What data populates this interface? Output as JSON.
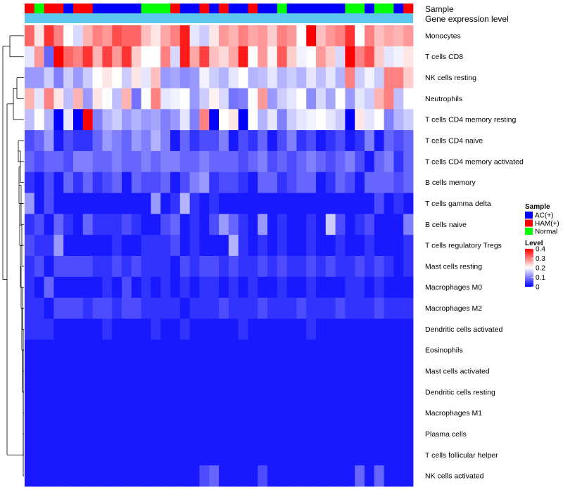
{
  "chart_data": {
    "type": "heatmap",
    "title": "",
    "annotation_tracks": [
      "Sample",
      "Gene expression level"
    ],
    "sample_groups": [
      "HAM(+)",
      "Normal",
      "HAM(+)",
      "HAM(+)",
      "AC(+)",
      "HAM(+)",
      "HAM(+)",
      "AC(+)",
      "AC(+)",
      "AC(+)",
      "AC(+)",
      "AC(+)",
      "Normal",
      "Normal",
      "Normal",
      "HAM(+)",
      "AC(+)",
      "AC(+)",
      "HAM(+)",
      "AC(+)",
      "HAM(+)",
      "AC(+)",
      "AC(+)",
      "HAM(+)",
      "AC(+)",
      "AC(+)",
      "Normal",
      "AC(+)",
      "AC(+)",
      "AC(+)",
      "AC(+)",
      "AC(+)",
      "AC(+)",
      "Normal",
      "Normal",
      "AC(+)",
      "Normal",
      "Normal",
      "AC(+)",
      "HAM(+)"
    ],
    "rows": [
      "Monocytes",
      "T cells CD8",
      "NK cells resting",
      "Neutrophils",
      "T cells CD4 memory resting",
      "T cells CD4 naive",
      "T cells CD4 memory activated",
      "B cells memory",
      "T cells gamma delta",
      "B cells naive",
      "T cells regulatory  Tregs",
      "Mast cells resting",
      "Macrophages M0",
      "Macrophages M2",
      "Dendritic cells activated",
      "Eosinophils",
      "Mast cells activated",
      "Dendritic cells resting",
      "Macrophages M1",
      "Plasma cells",
      "T cells follicular helper",
      "NK cells activated"
    ],
    "values": [
      [
        0.32,
        0.22,
        0.36,
        0.3,
        0.2,
        0.17,
        0.26,
        0.3,
        0.28,
        0.34,
        0.32,
        0.32,
        0.25,
        0.22,
        0.27,
        0.3,
        0.38,
        0.18,
        0.16,
        0.22,
        0.28,
        0.26,
        0.3,
        0.27,
        0.28,
        0.24,
        0.3,
        0.28,
        0.2,
        0.4,
        0.25,
        0.28,
        0.3,
        0.36,
        0.2,
        0.3,
        0.25,
        0.27,
        0.26,
        0.28
      ],
      [
        0.18,
        0.28,
        0.08,
        0.4,
        0.32,
        0.3,
        0.36,
        0.26,
        0.35,
        0.28,
        0.36,
        0.24,
        0.2,
        0.2,
        0.3,
        0.17,
        0.38,
        0.27,
        0.35,
        0.25,
        0.23,
        0.27,
        0.38,
        0.2,
        0.28,
        0.21,
        0.33,
        0.24,
        0.19,
        0.2,
        0.28,
        0.24,
        0.17,
        0.4,
        0.3,
        0.34,
        0.24,
        0.18,
        0.19,
        0.22
      ],
      [
        0.12,
        0.12,
        0.16,
        0.1,
        0.16,
        0.12,
        0.16,
        0.2,
        0.22,
        0.2,
        0.16,
        0.22,
        0.18,
        0.25,
        0.12,
        0.13,
        0.11,
        0.12,
        0.19,
        0.16,
        0.14,
        0.18,
        0.2,
        0.14,
        0.15,
        0.18,
        0.14,
        0.16,
        0.14,
        0.18,
        0.15,
        0.18,
        0.14,
        0.3,
        0.16,
        0.19,
        0.16,
        0.3,
        0.3,
        0.24
      ],
      [
        0.26,
        0.18,
        0.3,
        0.22,
        0.15,
        0.26,
        0.12,
        0.22,
        0.2,
        0.15,
        0.26,
        0.09,
        0.2,
        0.3,
        0.18,
        0.19,
        0.2,
        0.12,
        0.16,
        0.21,
        0.17,
        0.09,
        0.1,
        0.2,
        0.28,
        0.12,
        0.16,
        0.18,
        0.2,
        0.11,
        0.17,
        0.13,
        0.2,
        0.12,
        0.18,
        0.16,
        0.26,
        0.3,
        0.15,
        0.2
      ],
      [
        0.15,
        0.2,
        0.14,
        0.0,
        0.18,
        0.0,
        0.4,
        0.1,
        0.14,
        0.16,
        0.12,
        0.14,
        0.12,
        0.13,
        0.1,
        0.12,
        0.18,
        0.1,
        0.3,
        0.0,
        0.2,
        0.22,
        0.0,
        0.2,
        0.14,
        0.18,
        0.1,
        0.16,
        0.18,
        0.19,
        0.2,
        0.18,
        0.16,
        0.0,
        0.22,
        0.18,
        0.2,
        0.1,
        0.14,
        0.16
      ],
      [
        0.06,
        0.08,
        0.12,
        0.02,
        0.06,
        0.04,
        0.04,
        0.08,
        0.12,
        0.1,
        0.08,
        0.12,
        0.1,
        0.14,
        0.1,
        0.02,
        0.08,
        0.04,
        0.06,
        0.06,
        0.1,
        0.02,
        0.06,
        0.04,
        0.08,
        0.02,
        0.06,
        0.1,
        0.04,
        0.06,
        0.02,
        0.04,
        0.06,
        0.02,
        0.04,
        0.1,
        0.02,
        0.08,
        0.06,
        0.08
      ],
      [
        0.08,
        0.06,
        0.08,
        0.08,
        0.06,
        0.1,
        0.1,
        0.08,
        0.08,
        0.1,
        0.08,
        0.08,
        0.1,
        0.08,
        0.1,
        0.1,
        0.08,
        0.08,
        0.1,
        0.08,
        0.08,
        0.08,
        0.06,
        0.08,
        0.1,
        0.06,
        0.08,
        0.06,
        0.08,
        0.1,
        0.08,
        0.06,
        0.08,
        0.1,
        0.06,
        0.02,
        0.08,
        0.1,
        0.04,
        0.08
      ],
      [
        0.04,
        0.02,
        0.06,
        0.02,
        0.08,
        0.04,
        0.08,
        0.04,
        0.06,
        0.08,
        0.02,
        0.08,
        0.06,
        0.06,
        0.08,
        0.02,
        0.06,
        0.1,
        0.12,
        0.04,
        0.06,
        0.06,
        0.04,
        0.02,
        0.08,
        0.08,
        0.04,
        0.06,
        0.08,
        0.08,
        0.02,
        0.04,
        0.08,
        0.06,
        0.02,
        0.08,
        0.08,
        0.08,
        0.06,
        0.08
      ],
      [
        0.12,
        0.02,
        0.06,
        0.02,
        0.02,
        0.02,
        0.02,
        0.02,
        0.02,
        0.02,
        0.02,
        0.02,
        0.02,
        0.12,
        0.02,
        0.04,
        0.14,
        0.04,
        0.02,
        0.04,
        0.02,
        0.02,
        0.02,
        0.02,
        0.02,
        0.02,
        0.02,
        0.02,
        0.02,
        0.02,
        0.02,
        0.02,
        0.02,
        0.02,
        0.02,
        0.02,
        0.06,
        0.02,
        0.04,
        0.02
      ],
      [
        0.04,
        0.06,
        0.02,
        0.08,
        0.04,
        0.02,
        0.08,
        0.04,
        0.04,
        0.04,
        0.06,
        0.04,
        0.02,
        0.02,
        0.06,
        0.08,
        0.02,
        0.04,
        0.02,
        0.06,
        0.12,
        0.08,
        0.04,
        0.02,
        0.12,
        0.02,
        0.04,
        0.02,
        0.02,
        0.04,
        0.02,
        0.16,
        0.06,
        0.02,
        0.04,
        0.06,
        0.02,
        0.02,
        0.02,
        0.1
      ],
      [
        0.06,
        0.04,
        0.04,
        0.12,
        0.02,
        0.02,
        0.02,
        0.02,
        0.02,
        0.04,
        0.02,
        0.02,
        0.04,
        0.04,
        0.04,
        0.06,
        0.02,
        0.04,
        0.02,
        0.02,
        0.02,
        0.14,
        0.04,
        0.02,
        0.04,
        0.02,
        0.04,
        0.02,
        0.02,
        0.04,
        0.02,
        0.02,
        0.04,
        0.02,
        0.02,
        0.04,
        0.02,
        0.02,
        0.02,
        0.04
      ],
      [
        0.04,
        0.06,
        0.02,
        0.06,
        0.06,
        0.06,
        0.06,
        0.04,
        0.04,
        0.06,
        0.04,
        0.06,
        0.04,
        0.04,
        0.04,
        0.02,
        0.06,
        0.04,
        0.06,
        0.06,
        0.04,
        0.06,
        0.04,
        0.04,
        0.06,
        0.04,
        0.06,
        0.04,
        0.04,
        0.06,
        0.04,
        0.06,
        0.04,
        0.04,
        0.06,
        0.04,
        0.06,
        0.04,
        0.02,
        0.04
      ],
      [
        0.04,
        0.02,
        0.08,
        0.02,
        0.02,
        0.02,
        0.02,
        0.02,
        0.04,
        0.02,
        0.06,
        0.02,
        0.04,
        0.02,
        0.04,
        0.02,
        0.04,
        0.02,
        0.04,
        0.04,
        0.02,
        0.04,
        0.02,
        0.04,
        0.02,
        0.02,
        0.04,
        0.02,
        0.02,
        0.04,
        0.02,
        0.02,
        0.02,
        0.04,
        0.04,
        0.02,
        0.04,
        0.02,
        0.02,
        0.02
      ],
      [
        0.04,
        0.04,
        0.02,
        0.06,
        0.06,
        0.06,
        0.04,
        0.06,
        0.06,
        0.04,
        0.06,
        0.06,
        0.04,
        0.04,
        0.04,
        0.04,
        0.02,
        0.04,
        0.04,
        0.04,
        0.06,
        0.04,
        0.04,
        0.04,
        0.06,
        0.04,
        0.04,
        0.04,
        0.06,
        0.04,
        0.04,
        0.04,
        0.06,
        0.04,
        0.04,
        0.04,
        0.06,
        0.04,
        0.04,
        0.04
      ],
      [
        0.04,
        0.04,
        0.04,
        0.02,
        0.02,
        0.02,
        0.02,
        0.02,
        0.04,
        0.02,
        0.02,
        0.02,
        0.02,
        0.04,
        0.02,
        0.02,
        0.04,
        0.02,
        0.02,
        0.02,
        0.02,
        0.02,
        0.04,
        0.02,
        0.02,
        0.02,
        0.02,
        0.02,
        0.02,
        0.04,
        0.02,
        0.02,
        0.02,
        0.02,
        0.02,
        0.02,
        0.02,
        0.02,
        0.02,
        0.02
      ],
      [
        0.02,
        0.02,
        0.02,
        0.02,
        0.02,
        0.02,
        0.02,
        0.02,
        0.02,
        0.02,
        0.02,
        0.02,
        0.02,
        0.02,
        0.02,
        0.02,
        0.02,
        0.02,
        0.02,
        0.02,
        0.02,
        0.02,
        0.02,
        0.02,
        0.02,
        0.02,
        0.02,
        0.02,
        0.02,
        0.02,
        0.02,
        0.02,
        0.02,
        0.02,
        0.02,
        0.02,
        0.02,
        0.02,
        0.02,
        0.02
      ],
      [
        0.02,
        0.02,
        0.02,
        0.02,
        0.02,
        0.02,
        0.02,
        0.02,
        0.02,
        0.02,
        0.02,
        0.02,
        0.02,
        0.02,
        0.02,
        0.02,
        0.02,
        0.02,
        0.02,
        0.02,
        0.02,
        0.02,
        0.02,
        0.02,
        0.02,
        0.02,
        0.02,
        0.02,
        0.02,
        0.02,
        0.02,
        0.02,
        0.02,
        0.02,
        0.02,
        0.02,
        0.02,
        0.02,
        0.02,
        0.02
      ],
      [
        0.02,
        0.02,
        0.02,
        0.02,
        0.02,
        0.02,
        0.02,
        0.02,
        0.02,
        0.02,
        0.02,
        0.02,
        0.02,
        0.02,
        0.02,
        0.02,
        0.02,
        0.02,
        0.02,
        0.02,
        0.02,
        0.02,
        0.02,
        0.02,
        0.02,
        0.02,
        0.02,
        0.02,
        0.02,
        0.02,
        0.02,
        0.02,
        0.02,
        0.02,
        0.02,
        0.02,
        0.02,
        0.02,
        0.02,
        0.02
      ],
      [
        0.02,
        0.02,
        0.02,
        0.02,
        0.02,
        0.02,
        0.02,
        0.02,
        0.02,
        0.02,
        0.02,
        0.02,
        0.02,
        0.02,
        0.02,
        0.02,
        0.02,
        0.02,
        0.02,
        0.02,
        0.02,
        0.02,
        0.02,
        0.02,
        0.02,
        0.02,
        0.02,
        0.02,
        0.02,
        0.02,
        0.02,
        0.02,
        0.02,
        0.02,
        0.02,
        0.02,
        0.02,
        0.02,
        0.02,
        0.02
      ],
      [
        0.02,
        0.02,
        0.02,
        0.02,
        0.02,
        0.02,
        0.02,
        0.02,
        0.02,
        0.02,
        0.02,
        0.02,
        0.02,
        0.02,
        0.02,
        0.02,
        0.02,
        0.02,
        0.02,
        0.02,
        0.02,
        0.02,
        0.02,
        0.02,
        0.02,
        0.02,
        0.02,
        0.02,
        0.02,
        0.02,
        0.02,
        0.02,
        0.02,
        0.02,
        0.02,
        0.02,
        0.02,
        0.02,
        0.02,
        0.02
      ],
      [
        0.02,
        0.02,
        0.02,
        0.02,
        0.02,
        0.02,
        0.02,
        0.02,
        0.02,
        0.02,
        0.02,
        0.02,
        0.02,
        0.02,
        0.02,
        0.02,
        0.02,
        0.02,
        0.02,
        0.02,
        0.02,
        0.02,
        0.02,
        0.02,
        0.02,
        0.02,
        0.02,
        0.02,
        0.02,
        0.02,
        0.02,
        0.02,
        0.02,
        0.02,
        0.02,
        0.02,
        0.02,
        0.02,
        0.02,
        0.02
      ],
      [
        0.02,
        0.02,
        0.02,
        0.02,
        0.02,
        0.02,
        0.02,
        0.02,
        0.02,
        0.02,
        0.02,
        0.02,
        0.02,
        0.02,
        0.02,
        0.02,
        0.02,
        0.02,
        0.06,
        0.08,
        0.02,
        0.02,
        0.02,
        0.02,
        0.06,
        0.02,
        0.02,
        0.02,
        0.02,
        0.02,
        0.02,
        0.02,
        0.02,
        0.02,
        0.08,
        0.02,
        0.08,
        0.02,
        0.02,
        0.02
      ]
    ],
    "legend": {
      "sample_title": "Sample",
      "sample_entries": [
        {
          "label": "AC(+)",
          "color": "#0000ff"
        },
        {
          "label": "HAM(+)",
          "color": "#ff0000"
        },
        {
          "label": "Normal",
          "color": "#00ff00"
        }
      ],
      "level_title": "Level",
      "level_ticks": [
        "0.4",
        "0.3",
        "0.2",
        "0.1",
        "0"
      ],
      "level_range": [
        0,
        0.4
      ],
      "position": "right"
    },
    "colors": {
      "low": "#0000ff",
      "mid": "#ffffff",
      "high": "#ff0000",
      "expression_track": "#5cc8f0",
      "dendrogram": "#000000"
    }
  }
}
